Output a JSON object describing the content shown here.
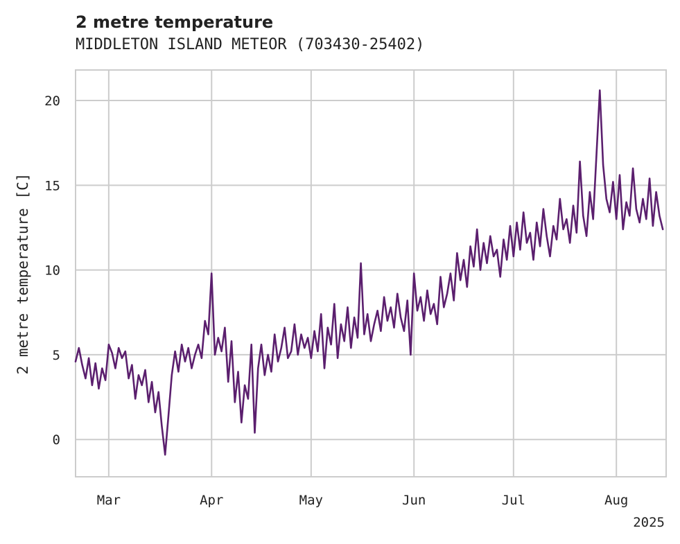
{
  "chart_data": {
    "type": "line",
    "title": "2 metre temperature",
    "subtitle": "MIDDLETON ISLAND METEOR (703430-25402)",
    "ylabel": "2 metre temperature [C]",
    "xlabel": "",
    "year_label": "2025",
    "xlim": [
      "2025-02-19",
      "2025-08-16"
    ],
    "ylim": [
      -2.2,
      21.8
    ],
    "grid": true,
    "legend": "none",
    "line_color": "#5b1f6e",
    "x_ticks": [
      {
        "date": "2025-03-01",
        "label": "Mar"
      },
      {
        "date": "2025-04-01",
        "label": "Apr"
      },
      {
        "date": "2025-05-01",
        "label": "May"
      },
      {
        "date": "2025-06-01",
        "label": "Jun"
      },
      {
        "date": "2025-07-01",
        "label": "Jul"
      },
      {
        "date": "2025-08-01",
        "label": "Aug"
      }
    ],
    "y_ticks": [
      0,
      5,
      10,
      15,
      20
    ],
    "series": [
      {
        "name": "",
        "points": [
          [
            "2025-02-19",
            4.6
          ],
          [
            "2025-02-20",
            5.4
          ],
          [
            "2025-02-21",
            4.4
          ],
          [
            "2025-02-22",
            3.6
          ],
          [
            "2025-02-23",
            4.8
          ],
          [
            "2025-02-24",
            3.2
          ],
          [
            "2025-02-25",
            4.5
          ],
          [
            "2025-02-26",
            3.0
          ],
          [
            "2025-02-27",
            4.2
          ],
          [
            "2025-02-28",
            3.5
          ],
          [
            "2025-03-01",
            5.6
          ],
          [
            "2025-03-02",
            5.1
          ],
          [
            "2025-03-03",
            4.2
          ],
          [
            "2025-03-04",
            5.4
          ],
          [
            "2025-03-05",
            4.8
          ],
          [
            "2025-03-06",
            5.2
          ],
          [
            "2025-03-07",
            3.6
          ],
          [
            "2025-03-08",
            4.4
          ],
          [
            "2025-03-09",
            2.4
          ],
          [
            "2025-03-10",
            3.8
          ],
          [
            "2025-03-11",
            3.2
          ],
          [
            "2025-03-12",
            4.1
          ],
          [
            "2025-03-13",
            2.2
          ],
          [
            "2025-03-14",
            3.4
          ],
          [
            "2025-03-15",
            1.6
          ],
          [
            "2025-03-16",
            2.8
          ],
          [
            "2025-03-17",
            0.8
          ],
          [
            "2025-03-18",
            -0.9
          ],
          [
            "2025-03-19",
            1.4
          ],
          [
            "2025-03-20",
            3.8
          ],
          [
            "2025-03-21",
            5.2
          ],
          [
            "2025-03-22",
            4.0
          ],
          [
            "2025-03-23",
            5.6
          ],
          [
            "2025-03-24",
            4.6
          ],
          [
            "2025-03-25",
            5.4
          ],
          [
            "2025-03-26",
            4.2
          ],
          [
            "2025-03-27",
            5.0
          ],
          [
            "2025-03-28",
            5.6
          ],
          [
            "2025-03-29",
            4.8
          ],
          [
            "2025-03-30",
            7.0
          ],
          [
            "2025-03-31",
            6.2
          ],
          [
            "2025-04-01",
            9.8
          ],
          [
            "2025-04-02",
            5.0
          ],
          [
            "2025-04-03",
            6.0
          ],
          [
            "2025-04-04",
            5.2
          ],
          [
            "2025-04-05",
            6.6
          ],
          [
            "2025-04-06",
            3.4
          ],
          [
            "2025-04-07",
            5.8
          ],
          [
            "2025-04-08",
            2.2
          ],
          [
            "2025-04-09",
            4.0
          ],
          [
            "2025-04-10",
            1.0
          ],
          [
            "2025-04-11",
            3.2
          ],
          [
            "2025-04-12",
            2.4
          ],
          [
            "2025-04-13",
            5.6
          ],
          [
            "2025-04-14",
            0.4
          ],
          [
            "2025-04-15",
            4.2
          ],
          [
            "2025-04-16",
            5.6
          ],
          [
            "2025-04-17",
            3.8
          ],
          [
            "2025-04-18",
            5.0
          ],
          [
            "2025-04-19",
            4.0
          ],
          [
            "2025-04-20",
            6.2
          ],
          [
            "2025-04-21",
            4.6
          ],
          [
            "2025-04-22",
            5.4
          ],
          [
            "2025-04-23",
            6.6
          ],
          [
            "2025-04-24",
            4.8
          ],
          [
            "2025-04-25",
            5.2
          ],
          [
            "2025-04-26",
            6.8
          ],
          [
            "2025-04-27",
            5.0
          ],
          [
            "2025-04-28",
            6.2
          ],
          [
            "2025-04-29",
            5.4
          ],
          [
            "2025-04-30",
            6.0
          ],
          [
            "2025-05-01",
            4.8
          ],
          [
            "2025-05-02",
            6.4
          ],
          [
            "2025-05-03",
            5.2
          ],
          [
            "2025-05-04",
            7.4
          ],
          [
            "2025-05-05",
            4.2
          ],
          [
            "2025-05-06",
            6.6
          ],
          [
            "2025-05-07",
            5.6
          ],
          [
            "2025-05-08",
            8.0
          ],
          [
            "2025-05-09",
            4.8
          ],
          [
            "2025-05-10",
            6.8
          ],
          [
            "2025-05-11",
            5.8
          ],
          [
            "2025-05-12",
            7.8
          ],
          [
            "2025-05-13",
            5.4
          ],
          [
            "2025-05-14",
            7.2
          ],
          [
            "2025-05-15",
            6.0
          ],
          [
            "2025-05-16",
            10.4
          ],
          [
            "2025-05-17",
            6.2
          ],
          [
            "2025-05-18",
            7.4
          ],
          [
            "2025-05-19",
            5.8
          ],
          [
            "2025-05-20",
            6.8
          ],
          [
            "2025-05-21",
            7.6
          ],
          [
            "2025-05-22",
            6.4
          ],
          [
            "2025-05-23",
            8.4
          ],
          [
            "2025-05-24",
            7.0
          ],
          [
            "2025-05-25",
            7.8
          ],
          [
            "2025-05-26",
            6.6
          ],
          [
            "2025-05-27",
            8.6
          ],
          [
            "2025-05-28",
            7.2
          ],
          [
            "2025-05-29",
            6.4
          ],
          [
            "2025-05-30",
            8.2
          ],
          [
            "2025-05-31",
            5.0
          ],
          [
            "2025-06-01",
            9.8
          ],
          [
            "2025-06-02",
            7.6
          ],
          [
            "2025-06-03",
            8.4
          ],
          [
            "2025-06-04",
            7.0
          ],
          [
            "2025-06-05",
            8.8
          ],
          [
            "2025-06-06",
            7.4
          ],
          [
            "2025-06-07",
            8.0
          ],
          [
            "2025-06-08",
            6.8
          ],
          [
            "2025-06-09",
            9.6
          ],
          [
            "2025-06-10",
            7.8
          ],
          [
            "2025-06-11",
            8.6
          ],
          [
            "2025-06-12",
            9.8
          ],
          [
            "2025-06-13",
            8.2
          ],
          [
            "2025-06-14",
            11.0
          ],
          [
            "2025-06-15",
            9.4
          ],
          [
            "2025-06-16",
            10.6
          ],
          [
            "2025-06-17",
            9.0
          ],
          [
            "2025-06-18",
            11.4
          ],
          [
            "2025-06-19",
            10.2
          ],
          [
            "2025-06-20",
            12.4
          ],
          [
            "2025-06-21",
            10.0
          ],
          [
            "2025-06-22",
            11.6
          ],
          [
            "2025-06-23",
            10.4
          ],
          [
            "2025-06-24",
            12.0
          ],
          [
            "2025-06-25",
            10.8
          ],
          [
            "2025-06-26",
            11.2
          ],
          [
            "2025-06-27",
            9.6
          ],
          [
            "2025-06-28",
            11.8
          ],
          [
            "2025-06-29",
            10.6
          ],
          [
            "2025-06-30",
            12.6
          ],
          [
            "2025-07-01",
            10.8
          ],
          [
            "2025-07-02",
            12.8
          ],
          [
            "2025-07-03",
            11.2
          ],
          [
            "2025-07-04",
            13.4
          ],
          [
            "2025-07-05",
            11.6
          ],
          [
            "2025-07-06",
            12.2
          ],
          [
            "2025-07-07",
            10.6
          ],
          [
            "2025-07-08",
            12.8
          ],
          [
            "2025-07-09",
            11.4
          ],
          [
            "2025-07-10",
            13.6
          ],
          [
            "2025-07-11",
            12.0
          ],
          [
            "2025-07-12",
            10.8
          ],
          [
            "2025-07-13",
            12.6
          ],
          [
            "2025-07-14",
            11.8
          ],
          [
            "2025-07-15",
            14.2
          ],
          [
            "2025-07-16",
            12.4
          ],
          [
            "2025-07-17",
            13.0
          ],
          [
            "2025-07-18",
            11.6
          ],
          [
            "2025-07-19",
            13.8
          ],
          [
            "2025-07-20",
            12.2
          ],
          [
            "2025-07-21",
            16.4
          ],
          [
            "2025-07-22",
            13.2
          ],
          [
            "2025-07-23",
            12.0
          ],
          [
            "2025-07-24",
            14.6
          ],
          [
            "2025-07-25",
            13.0
          ],
          [
            "2025-07-26",
            16.8
          ],
          [
            "2025-07-27",
            20.6
          ],
          [
            "2025-07-28",
            16.2
          ],
          [
            "2025-07-29",
            14.2
          ],
          [
            "2025-07-30",
            13.4
          ],
          [
            "2025-07-31",
            15.2
          ],
          [
            "2025-08-01",
            13.0
          ],
          [
            "2025-08-02",
            15.6
          ],
          [
            "2025-08-03",
            12.4
          ],
          [
            "2025-08-04",
            14.0
          ],
          [
            "2025-08-05",
            13.2
          ],
          [
            "2025-08-06",
            16.0
          ],
          [
            "2025-08-07",
            13.6
          ],
          [
            "2025-08-08",
            12.8
          ],
          [
            "2025-08-09",
            14.2
          ],
          [
            "2025-08-10",
            13.0
          ],
          [
            "2025-08-11",
            15.4
          ],
          [
            "2025-08-12",
            12.6
          ],
          [
            "2025-08-13",
            14.6
          ],
          [
            "2025-08-14",
            13.2
          ],
          [
            "2025-08-15",
            12.4
          ]
        ]
      }
    ]
  }
}
